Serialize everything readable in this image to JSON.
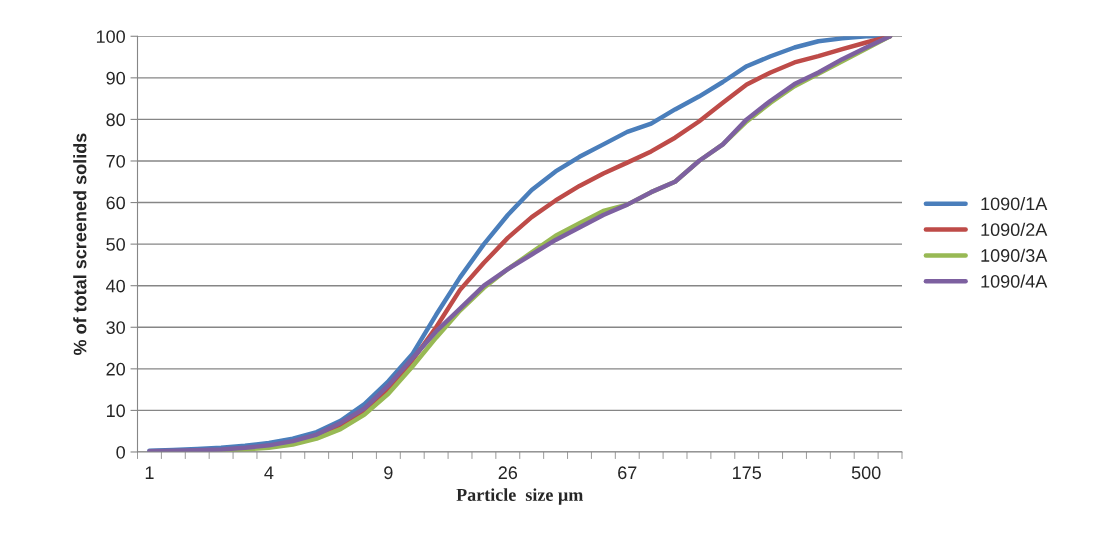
{
  "chart_data": {
    "type": "line",
    "xlabel": "Particle  size µm",
    "ylabel": "% of total screened solids",
    "categories": [
      "1",
      null,
      null,
      null,
      null,
      "4",
      null,
      null,
      null,
      null,
      "9",
      null,
      null,
      null,
      null,
      "26",
      null,
      null,
      null,
      null,
      "67",
      null,
      null,
      null,
      null,
      "175",
      null,
      null,
      null,
      null,
      "500",
      null
    ],
    "ylim": [
      0,
      100
    ],
    "yticks": [
      0,
      10,
      20,
      30,
      40,
      50,
      60,
      70,
      80,
      90,
      100
    ],
    "grid": "y",
    "legend": "right",
    "marker": "none",
    "line_style": "solid",
    "series": [
      {
        "name": "1090/1A",
        "color": "#4a7ebb",
        "values": [
          0.3,
          0.5,
          0.7,
          1.0,
          1.5,
          2.2,
          3.2,
          4.8,
          7.5,
          11.5,
          17,
          23.5,
          33,
          42,
          50,
          57,
          63,
          67.5,
          71,
          74,
          77,
          79,
          82.4,
          85.5,
          89,
          92.8,
          95.2,
          97.3,
          98.8,
          99.5,
          100,
          100
        ]
      },
      {
        "name": "1090/2A",
        "color": "#be4b48",
        "values": [
          null,
          null,
          null,
          null,
          null,
          null,
          2.2,
          3.6,
          6,
          9.5,
          15,
          22,
          30,
          39,
          45.5,
          51.5,
          56.5,
          60.5,
          64,
          67,
          69.6,
          72.3,
          75.6,
          79.5,
          84,
          88.4,
          91.3,
          93.7,
          95.2,
          96.9,
          98.5,
          100
        ]
      },
      {
        "name": "1090/3A",
        "color": "#98b954",
        "values": [
          null,
          null,
          0.3,
          0.4,
          0.6,
          1,
          1.8,
          3.2,
          5.5,
          9,
          14,
          20.5,
          27.5,
          34,
          39.5,
          44,
          48,
          52,
          55,
          58,
          59.5,
          62.5,
          65,
          70,
          74,
          79.5,
          84,
          88,
          91,
          94,
          97,
          100
        ]
      },
      {
        "name": "1090/4A",
        "color": "#7d60a0",
        "values": [
          0.2,
          0.3,
          0.4,
          0.6,
          1,
          1.6,
          2.6,
          4.2,
          7,
          10.5,
          16,
          22.5,
          29,
          34.5,
          40,
          44,
          47.5,
          51,
          54,
          57,
          59.5,
          62.5,
          65,
          70,
          74,
          80,
          84.5,
          88.5,
          91.3,
          94.5,
          97.3,
          100
        ]
      }
    ]
  }
}
